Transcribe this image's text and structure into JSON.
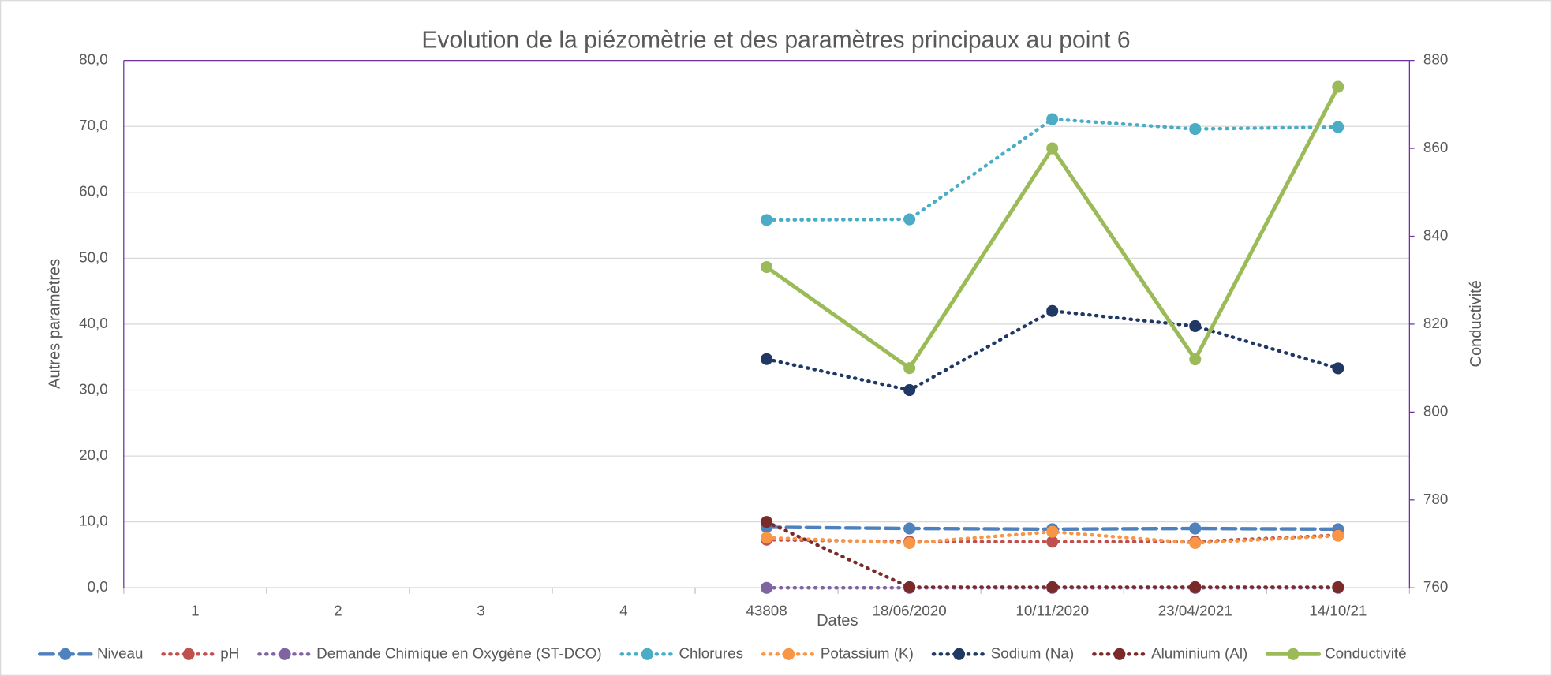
{
  "chart_data": {
    "type": "line",
    "title": "Evolution de la piézomètrie et des paramètres principaux au point  6",
    "x_label": "Dates",
    "y_label": "Autres paramètres",
    "y2_label": "Conductivité",
    "categories": [
      "1",
      "2",
      "3",
      "4",
      "43808",
      "18/06/2020",
      "10/11/2020",
      "23/04/2021",
      "14/10/21"
    ],
    "ylim": [
      0,
      80
    ],
    "yticks": [
      {
        "value": 0,
        "label": "0,0"
      },
      {
        "value": 10,
        "label": "10,0"
      },
      {
        "value": 20,
        "label": "20,0"
      },
      {
        "value": 30,
        "label": "30,0"
      },
      {
        "value": 40,
        "label": "40,0"
      },
      {
        "value": 50,
        "label": "50,0"
      },
      {
        "value": 60,
        "label": "60,0"
      },
      {
        "value": 70,
        "label": "70,0"
      },
      {
        "value": 80,
        "label": "80,0"
      }
    ],
    "y2lim": [
      760,
      880
    ],
    "y2ticks": [
      760,
      780,
      800,
      820,
      840,
      860,
      880
    ],
    "grid": true,
    "legend": "bottom",
    "series": [
      {
        "name": "Niveau",
        "color": "#4f81bd",
        "style": "dashed",
        "values": [
          null,
          null,
          null,
          null,
          9.2,
          9.0,
          8.9,
          9.0,
          8.9
        ]
      },
      {
        "name": "pH",
        "color": "#c0504d",
        "style": "dotted",
        "values": [
          null,
          null,
          null,
          null,
          7.3,
          7.0,
          7.0,
          7.0,
          8.0
        ]
      },
      {
        "name": "Demande Chimique en Oxygène (ST-DCO)",
        "color": "#8064a2",
        "style": "dotted",
        "values": [
          null,
          null,
          null,
          null,
          0,
          0,
          0,
          0,
          0
        ]
      },
      {
        "name": "Chlorures",
        "color": "#4bacc6",
        "style": "dotted",
        "values": [
          null,
          null,
          null,
          null,
          55.8,
          55.9,
          71.1,
          69.6,
          69.9
        ]
      },
      {
        "name": "Potassium (K)",
        "color": "#f79646",
        "style": "dotted",
        "values": [
          null,
          null,
          null,
          null,
          7.6,
          6.8,
          8.5,
          6.8,
          7.9
        ]
      },
      {
        "name": "Sodium (Na)",
        "color": "#1f3864",
        "style": "dotted",
        "values": [
          null,
          null,
          null,
          null,
          34.7,
          30.0,
          42.0,
          39.7,
          33.3
        ]
      },
      {
        "name": "Aluminium (Al)",
        "color": "#7b2a2a",
        "style": "dotted",
        "values": [
          null,
          null,
          null,
          null,
          10.0,
          0.1,
          0.1,
          0.1,
          0.1
        ]
      },
      {
        "name": "Conductivité",
        "color": "#9bbb59",
        "style": "solid",
        "axis": "y2",
        "values": [
          null,
          null,
          null,
          null,
          833,
          810,
          860,
          812,
          874
        ]
      }
    ]
  }
}
